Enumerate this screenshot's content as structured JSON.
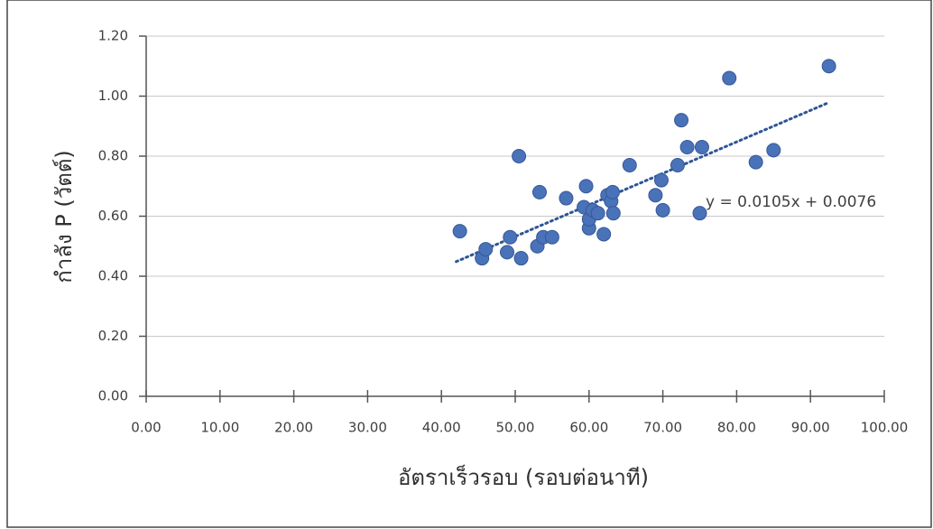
{
  "chart_data": {
    "type": "scatter",
    "x_label": "อัตราเร็วรอบ (รอบต่อนาที)",
    "y_label": "กำลัง P (วัตต์)",
    "x": [
      42.5,
      45.5,
      46.0,
      48.9,
      49.3,
      50.5,
      50.8,
      53.0,
      53.3,
      53.8,
      55.0,
      56.9,
      59.3,
      59.6,
      60.0,
      60.0,
      60.5,
      61.2,
      62.0,
      62.5,
      63.0,
      63.2,
      63.3,
      65.5,
      69.0,
      69.8,
      70.0,
      72.0,
      72.5,
      73.3,
      75.0,
      75.3,
      79.0,
      82.6,
      85.0,
      92.5
    ],
    "values": [
      0.55,
      0.46,
      0.49,
      0.48,
      0.53,
      0.8,
      0.46,
      0.5,
      0.68,
      0.53,
      0.53,
      0.66,
      0.63,
      0.7,
      0.56,
      0.59,
      0.62,
      0.61,
      0.54,
      0.67,
      0.65,
      0.68,
      0.61,
      0.77,
      0.67,
      0.72,
      0.62,
      0.77,
      0.92,
      0.83,
      0.61,
      0.83,
      1.06,
      0.78,
      0.82,
      1.1
    ],
    "color": "#4a72b8",
    "trendline": {
      "label": "y = 0.0105x + 0.0076",
      "slope": 0.0105,
      "intercept": 0.0076,
      "x_range": [
        42,
        92.5
      ],
      "color": "#2e5597"
    },
    "xlim": [
      0,
      100
    ],
    "xticks": [
      {
        "value": 0,
        "label": "0.00"
      },
      {
        "value": 10,
        "label": "10.00"
      },
      {
        "value": 20,
        "label": "20.00"
      },
      {
        "value": 30,
        "label": "30.00"
      },
      {
        "value": 40,
        "label": "40.00"
      },
      {
        "value": 50,
        "label": "50.00"
      },
      {
        "value": 60,
        "label": "60.00"
      },
      {
        "value": 70,
        "label": "70.00"
      },
      {
        "value": 80,
        "label": "80.00"
      },
      {
        "value": 90,
        "label": "90.00"
      },
      {
        "value": 100,
        "label": "100.00"
      }
    ],
    "ylim": [
      0,
      1.2
    ],
    "yticks": [
      {
        "value": 0,
        "label": "0.00"
      },
      {
        "value": 0.2,
        "label": "0.20"
      },
      {
        "value": 0.4,
        "label": "0.40"
      },
      {
        "value": 0.6,
        "label": "0.60"
      },
      {
        "value": 0.8,
        "label": "0.80"
      },
      {
        "value": 1.0,
        "label": "1.00"
      },
      {
        "value": 1.2,
        "label": "1.20"
      }
    ],
    "grid": true
  }
}
